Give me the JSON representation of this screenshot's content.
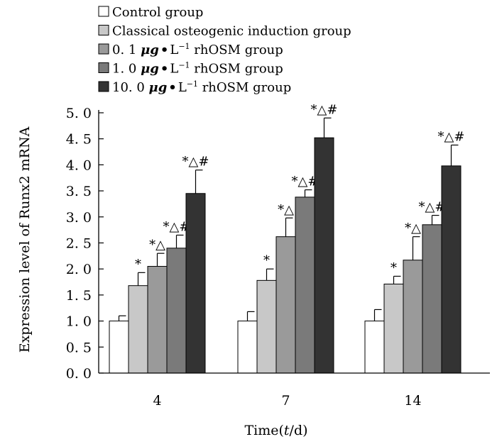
{
  "chart_data": {
    "type": "bar",
    "title": "",
    "xlabel_prefix": "Time(",
    "xlabel_var": "t",
    "xlabel_suffix": "/d)",
    "ylabel": "Expression level of Runx2 mRNA",
    "ylim": [
      0,
      5.0
    ],
    "yticks": [
      "0. 0",
      "0. 5",
      "1. 0",
      "1. 5",
      "2. 0",
      "2. 5",
      "3. 0",
      "3. 5",
      "4. 0",
      "4. 5",
      "5. 0"
    ],
    "categories": [
      "4",
      "7",
      "14"
    ],
    "legend_position": "top-left",
    "series": [
      {
        "name": "Control group",
        "legend_parts": [
          "Control group"
        ],
        "color": "#ffffff",
        "values": [
          1.0,
          1.0,
          1.0
        ],
        "errors": [
          0.1,
          0.18,
          0.22
        ],
        "labels": [
          "",
          "",
          ""
        ]
      },
      {
        "name": "Classical osteogenic induction group",
        "legend_parts": [
          "Classical osteogenic induction group"
        ],
        "color": "#c8c8c8",
        "values": [
          1.68,
          1.78,
          1.71
        ],
        "errors": [
          0.25,
          0.22,
          0.15
        ],
        "labels": [
          "*",
          "*",
          "*"
        ]
      },
      {
        "name": "0. 1 μg·L⁻¹ rhOSM group",
        "legend_parts": [
          "0. 1 ",
          "μg",
          "•",
          "L",
          "−1",
          " rhOSM",
          " group"
        ],
        "color": "#9a9a9a",
        "values": [
          2.05,
          2.62,
          2.17
        ],
        "errors": [
          0.25,
          0.36,
          0.45
        ],
        "labels": [
          "*△",
          "*△",
          "*△"
        ]
      },
      {
        "name": "1. 0 μg·L⁻¹ rhOSM group",
        "legend_parts": [
          " 1. 0 ",
          "μg",
          "•",
          "L",
          "−1",
          " rhOSM",
          " group"
        ],
        "color": "#7a7a7a",
        "values": [
          2.4,
          3.38,
          2.85
        ],
        "errors": [
          0.25,
          0.14,
          0.18
        ],
        "labels": [
          "*△#",
          "*△#",
          "*△#"
        ]
      },
      {
        "name": "10. 0 μg·L⁻¹ rhOSM group",
        "legend_parts": [
          "10. 0 ",
          "μg",
          "•",
          "L",
          "−1",
          " rhOSM",
          " group"
        ],
        "color": "#333333",
        "values": [
          3.45,
          4.52,
          3.98
        ],
        "errors": [
          0.45,
          0.38,
          0.4
        ],
        "labels": [
          "*△#",
          "*△#",
          "*△#"
        ]
      }
    ]
  }
}
